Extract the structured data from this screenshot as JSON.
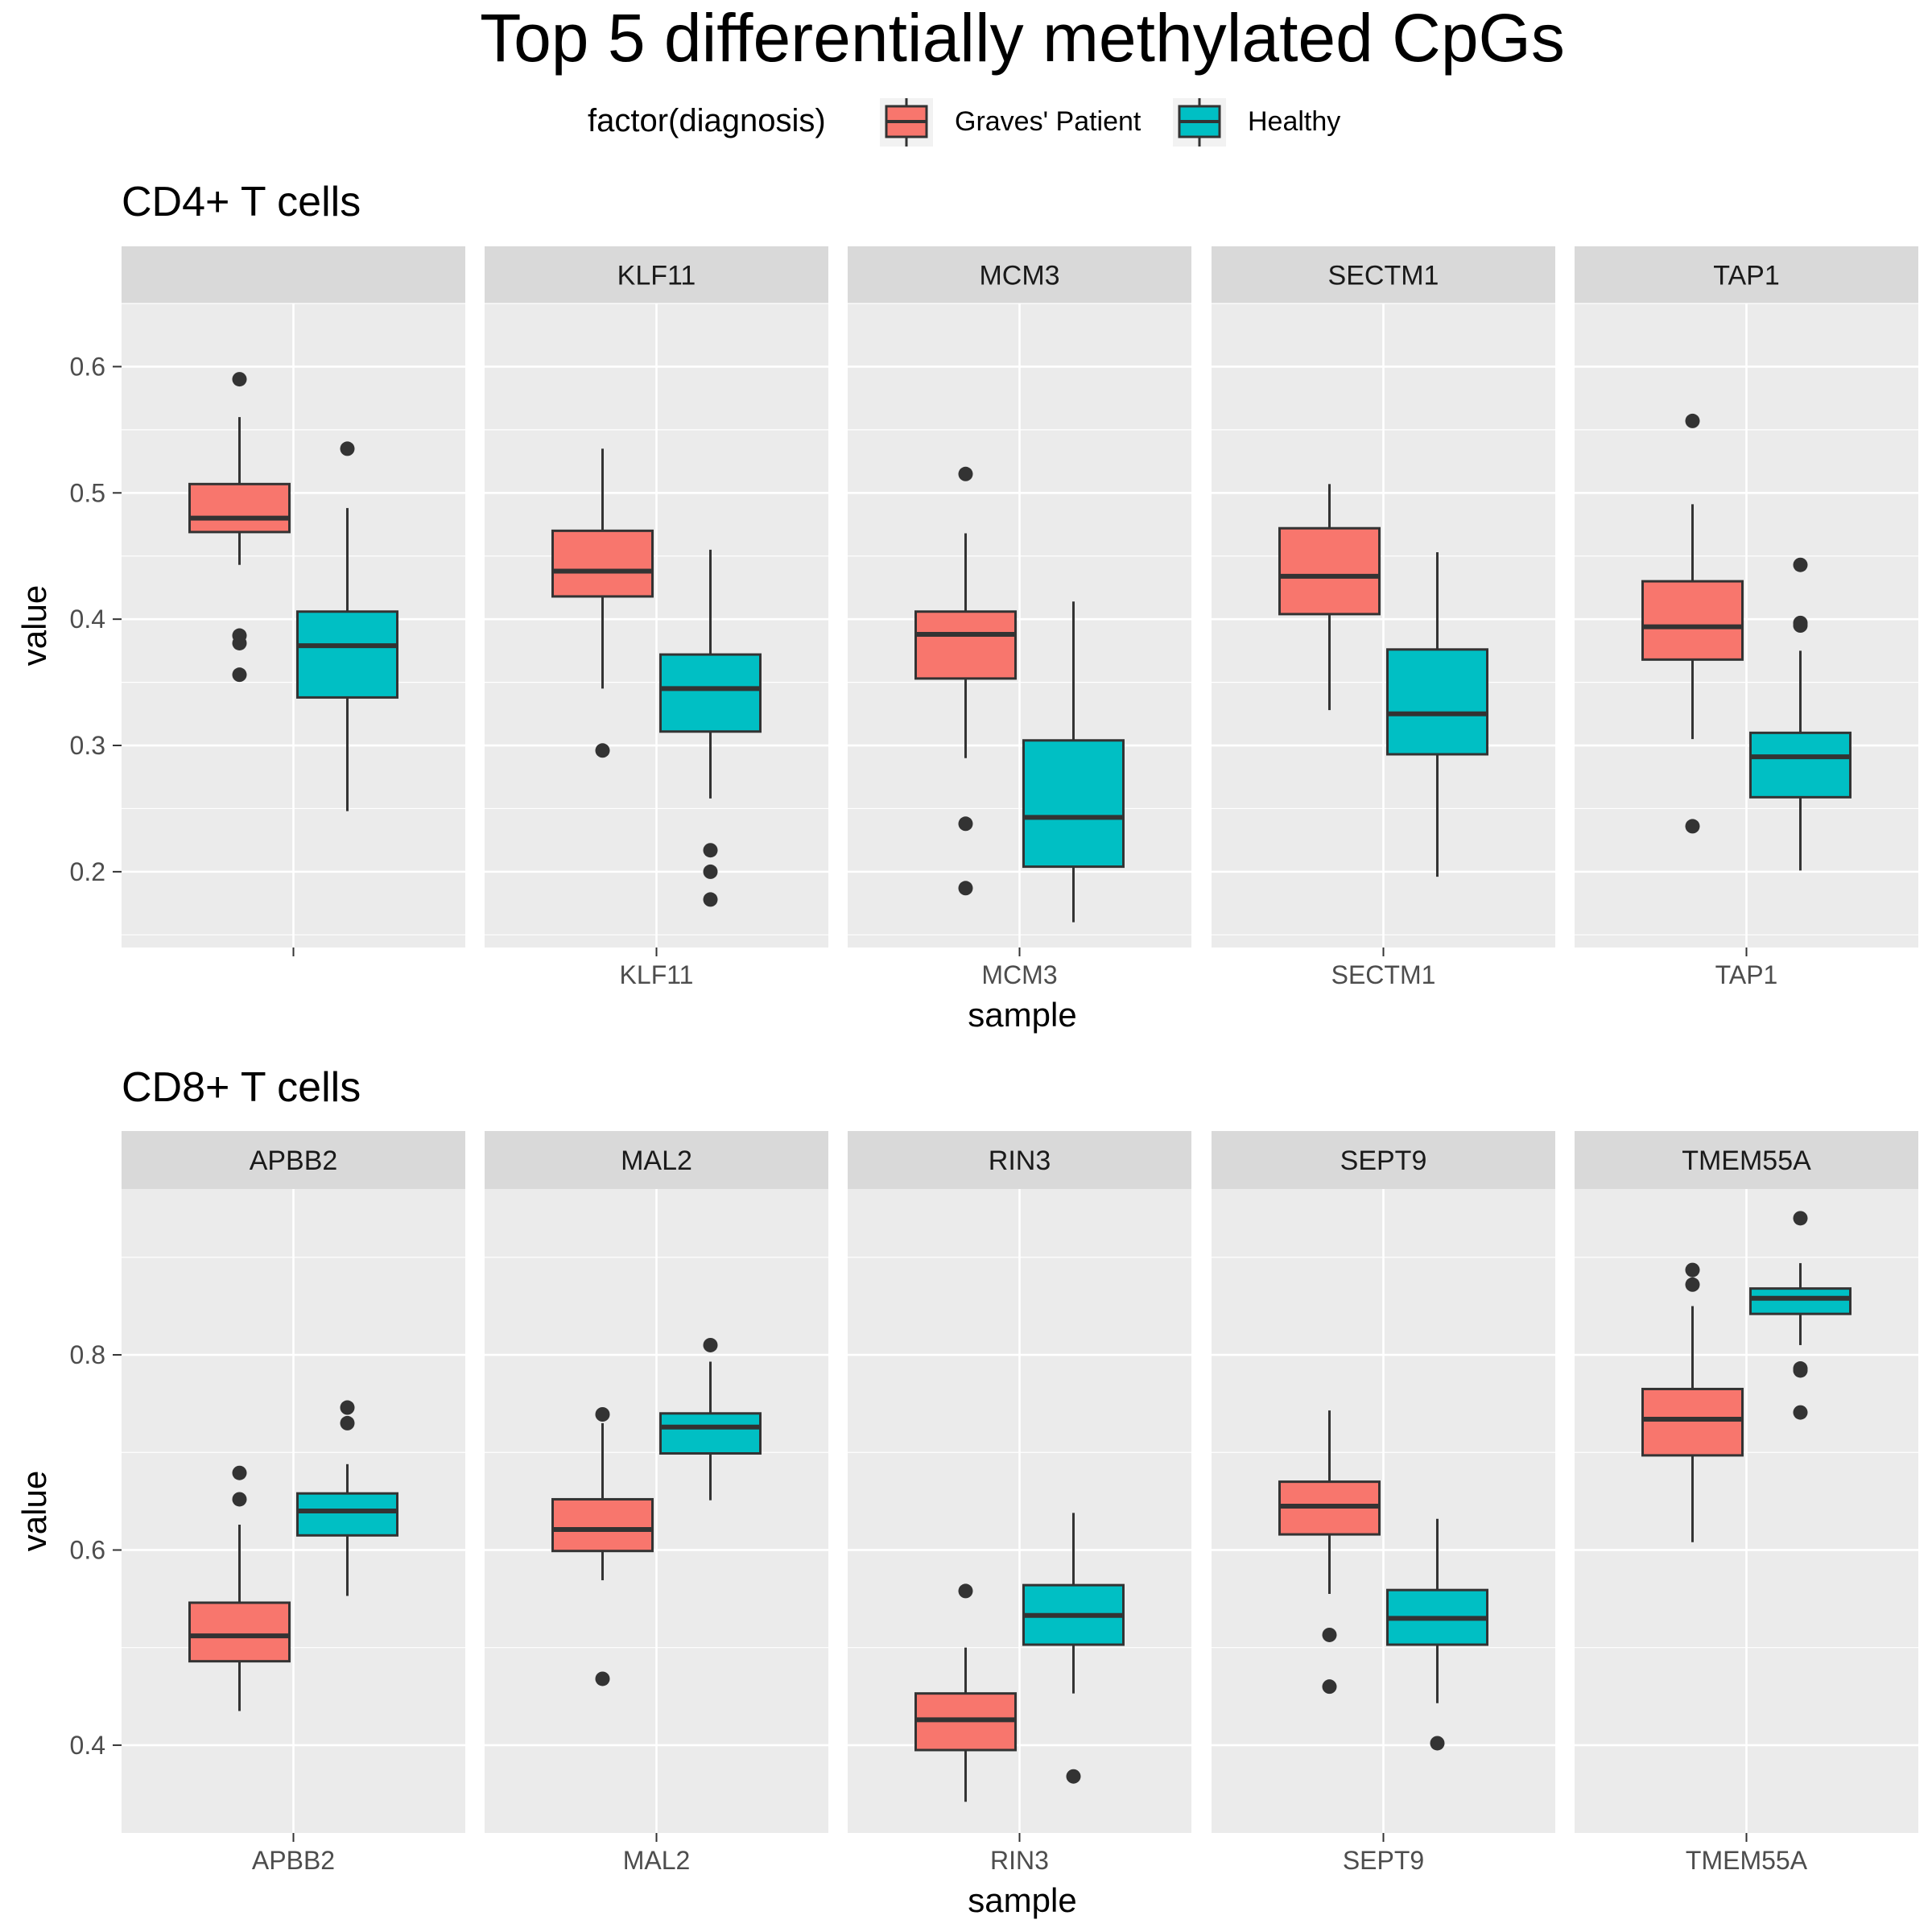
{
  "colors": {
    "graves": "#F8766D",
    "healthy": "#00BFC4",
    "panel_bg": "#EBEBEB",
    "strip_bg": "#D9D9D9",
    "grid": "#FFFFFF",
    "box_line": "#333333",
    "tick_text": "#4D4D4D"
  },
  "chart_data": {
    "title": "Top 5 differentially methylated CpGs",
    "legend": {
      "title": "factor(diagnosis)",
      "entries": [
        {
          "label": "Graves' Patient",
          "color_key": "graves"
        },
        {
          "label": "Healthy",
          "color_key": "healthy"
        }
      ],
      "placement": "top"
    },
    "charts": [
      {
        "type": "boxplot",
        "subtitle": "CD4+ T cells",
        "xlabel": "sample",
        "ylabel": "value",
        "ylim": [
          0.14,
          0.65
        ],
        "yticks": [
          0.2,
          0.3,
          0.4,
          0.5,
          0.6
        ],
        "yticklabels": [
          "0.2",
          "0.3",
          "0.4",
          "0.5",
          "0.6"
        ],
        "panels": [
          {
            "facet": "",
            "xtick": "",
            "graves": {
              "lower": 0.443,
              "q1": 0.469,
              "median": 0.48,
              "q3": 0.507,
              "upper": 0.56,
              "outliers": [
                0.59,
                0.387,
                0.381,
                0.356
              ]
            },
            "healthy": {
              "lower": 0.248,
              "q1": 0.338,
              "median": 0.379,
              "q3": 0.406,
              "upper": 0.488,
              "outliers": [
                0.535
              ]
            }
          },
          {
            "facet": "KLF11",
            "xtick": "KLF11",
            "graves": {
              "lower": 0.345,
              "q1": 0.418,
              "median": 0.438,
              "q3": 0.47,
              "upper": 0.535,
              "outliers": [
                0.296
              ]
            },
            "healthy": {
              "lower": 0.258,
              "q1": 0.311,
              "median": 0.345,
              "q3": 0.372,
              "upper": 0.455,
              "outliers": [
                0.217,
                0.2,
                0.178
              ]
            }
          },
          {
            "facet": "MCM3",
            "xtick": "MCM3",
            "graves": {
              "lower": 0.29,
              "q1": 0.353,
              "median": 0.388,
              "q3": 0.406,
              "upper": 0.468,
              "outliers": [
                0.515,
                0.238,
                0.187
              ]
            },
            "healthy": {
              "lower": 0.16,
              "q1": 0.204,
              "median": 0.243,
              "q3": 0.304,
              "upper": 0.414,
              "outliers": []
            }
          },
          {
            "facet": "SECTM1",
            "xtick": "SECTM1",
            "graves": {
              "lower": 0.328,
              "q1": 0.404,
              "median": 0.434,
              "q3": 0.472,
              "upper": 0.507,
              "outliers": []
            },
            "healthy": {
              "lower": 0.196,
              "q1": 0.293,
              "median": 0.325,
              "q3": 0.376,
              "upper": 0.453,
              "outliers": []
            }
          },
          {
            "facet": "TAP1",
            "xtick": "TAP1",
            "graves": {
              "lower": 0.305,
              "q1": 0.368,
              "median": 0.394,
              "q3": 0.43,
              "upper": 0.491,
              "outliers": [
                0.557,
                0.236
              ]
            },
            "healthy": {
              "lower": 0.201,
              "q1": 0.259,
              "median": 0.291,
              "q3": 0.31,
              "upper": 0.375,
              "outliers": [
                0.443,
                0.397,
                0.395
              ]
            }
          }
        ]
      },
      {
        "type": "boxplot",
        "subtitle": "CD8+ T cells",
        "xlabel": "sample",
        "ylabel": "value",
        "ylim": [
          0.31,
          0.97
        ],
        "yticks": [
          0.4,
          0.6,
          0.8
        ],
        "yticklabels": [
          "0.4",
          "0.6",
          "0.8"
        ],
        "panels": [
          {
            "facet": "APBB2",
            "xtick": "APBB2",
            "graves": {
              "lower": 0.435,
              "q1": 0.486,
              "median": 0.512,
              "q3": 0.546,
              "upper": 0.626,
              "outliers": [
                0.679,
                0.652
              ]
            },
            "healthy": {
              "lower": 0.553,
              "q1": 0.615,
              "median": 0.64,
              "q3": 0.658,
              "upper": 0.688,
              "outliers": [
                0.746,
                0.73
              ]
            }
          },
          {
            "facet": "MAL2",
            "xtick": "MAL2",
            "graves": {
              "lower": 0.569,
              "q1": 0.599,
              "median": 0.621,
              "q3": 0.652,
              "upper": 0.73,
              "outliers": [
                0.739,
                0.468
              ]
            },
            "healthy": {
              "lower": 0.651,
              "q1": 0.699,
              "median": 0.726,
              "q3": 0.74,
              "upper": 0.793,
              "outliers": [
                0.81
              ]
            }
          },
          {
            "facet": "RIN3",
            "xtick": "RIN3",
            "graves": {
              "lower": 0.342,
              "q1": 0.395,
              "median": 0.426,
              "q3": 0.453,
              "upper": 0.5,
              "outliers": [
                0.558
              ]
            },
            "healthy": {
              "lower": 0.453,
              "q1": 0.503,
              "median": 0.533,
              "q3": 0.564,
              "upper": 0.638,
              "outliers": [
                0.368
              ]
            }
          },
          {
            "facet": "SEPT9",
            "xtick": "SEPT9",
            "graves": {
              "lower": 0.555,
              "q1": 0.616,
              "median": 0.645,
              "q3": 0.67,
              "upper": 0.743,
              "outliers": [
                0.513,
                0.46
              ]
            },
            "healthy": {
              "lower": 0.443,
              "q1": 0.503,
              "median": 0.53,
              "q3": 0.559,
              "upper": 0.632,
              "outliers": [
                0.402
              ]
            }
          },
          {
            "facet": "TMEM55A",
            "xtick": "TMEM55A",
            "graves": {
              "lower": 0.608,
              "q1": 0.697,
              "median": 0.734,
              "q3": 0.765,
              "upper": 0.85,
              "outliers": [
                0.887,
                0.872
              ]
            },
            "healthy": {
              "lower": 0.81,
              "q1": 0.842,
              "median": 0.858,
              "q3": 0.868,
              "upper": 0.894,
              "outliers": [
                0.94,
                0.786,
                0.784,
                0.741
              ]
            }
          }
        ]
      }
    ]
  }
}
